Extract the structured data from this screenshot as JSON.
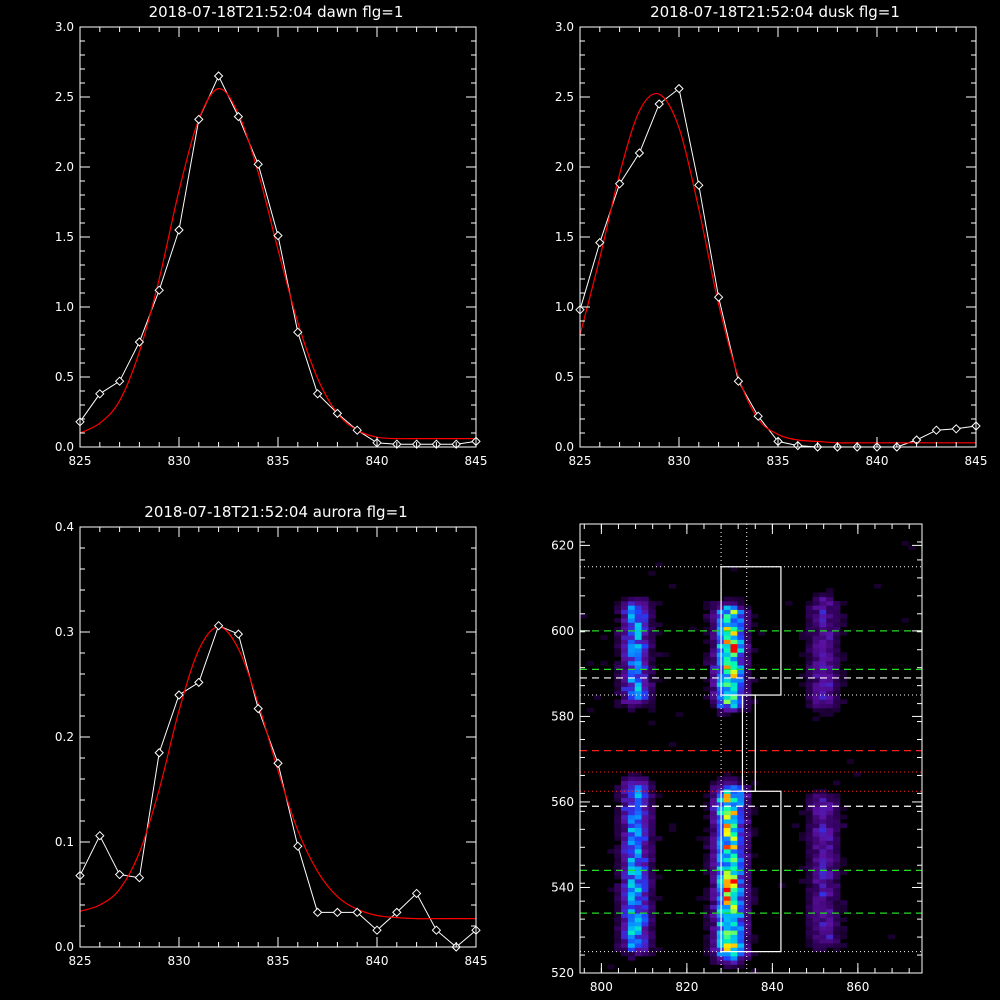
{
  "chart_data": [
    {
      "type": "line",
      "title": "2018-07-18T21:52:04 dawn flg=1",
      "xlim": [
        825,
        845
      ],
      "ylim": [
        0,
        3.0
      ],
      "xticks": [
        825,
        830,
        835,
        840,
        845
      ],
      "xtick_labels": [
        "825",
        "830",
        "835",
        "840",
        "845"
      ],
      "yticks": [
        0,
        0.5,
        1.0,
        1.5,
        2.0,
        2.5,
        3.0
      ],
      "ytick_labels": [
        "0.0",
        "0.5",
        "1.0",
        "1.5",
        "2.0",
        "2.5",
        "3.0"
      ],
      "grid": false,
      "series": [
        {
          "role": "observed",
          "color": "#ffffff",
          "marker": "diamond",
          "x": [
            825,
            826,
            827,
            828,
            829,
            830,
            831,
            832,
            833,
            834,
            835,
            836,
            837,
            838,
            839,
            840,
            841,
            842,
            843,
            844,
            845
          ],
          "y": [
            0.18,
            0.38,
            0.47,
            0.75,
            1.12,
            1.55,
            2.34,
            2.65,
            2.36,
            2.02,
            1.51,
            0.82,
            0.38,
            0.24,
            0.12,
            0.03,
            0.02,
            0.02,
            0.02,
            0.02,
            0.04
          ]
        },
        {
          "role": "fit",
          "color": "#ff0000",
          "marker": "none",
          "x": [
            825,
            826,
            827,
            828,
            829,
            830,
            831,
            832,
            833,
            834,
            835,
            836,
            837,
            838,
            839,
            840,
            841,
            842,
            843,
            844,
            845
          ],
          "y": [
            0.1,
            0.17,
            0.33,
            0.68,
            1.2,
            1.83,
            2.34,
            2.56,
            2.38,
            1.96,
            1.41,
            0.89,
            0.49,
            0.24,
            0.12,
            0.07,
            0.06,
            0.06,
            0.06,
            0.06,
            0.06
          ]
        }
      ]
    },
    {
      "type": "line",
      "title": "2018-07-18T21:52:04 dusk flg=1",
      "xlim": [
        825,
        845
      ],
      "ylim": [
        0,
        3.0
      ],
      "xticks": [
        825,
        830,
        835,
        840,
        845
      ],
      "xtick_labels": [
        "825",
        "830",
        "835",
        "840",
        "845"
      ],
      "yticks": [
        0,
        0.5,
        1.0,
        1.5,
        2.0,
        2.5,
        3.0
      ],
      "ytick_labels": [
        "0.0",
        "0.5",
        "1.0",
        "1.5",
        "2.0",
        "2.5",
        "3.0"
      ],
      "grid": false,
      "series": [
        {
          "role": "observed",
          "color": "#ffffff",
          "marker": "diamond",
          "x": [
            825,
            826,
            827,
            828,
            829,
            830,
            831,
            832,
            833,
            834,
            835,
            836,
            837,
            838,
            839,
            840,
            841,
            842,
            843,
            844,
            845
          ],
          "y": [
            0.98,
            1.46,
            1.88,
            2.1,
            2.45,
            2.56,
            1.87,
            1.07,
            0.47,
            0.22,
            0.04,
            0.01,
            0.0,
            0.0,
            0.0,
            0.0,
            0.0,
            0.05,
            0.12,
            0.13,
            0.15
          ]
        },
        {
          "role": "fit",
          "color": "#ff0000",
          "marker": "none",
          "x": [
            825,
            826,
            827,
            828,
            829,
            830,
            831,
            832,
            833,
            834,
            835,
            836,
            837,
            838,
            839,
            840,
            841,
            842,
            843,
            844,
            845
          ],
          "y": [
            0.8,
            1.35,
            1.95,
            2.4,
            2.52,
            2.28,
            1.7,
            1.02,
            0.5,
            0.2,
            0.09,
            0.05,
            0.04,
            0.03,
            0.03,
            0.03,
            0.03,
            0.03,
            0.03,
            0.03,
            0.03
          ]
        }
      ]
    },
    {
      "type": "line",
      "title": "2018-07-18T21:52:04 aurora flg=1",
      "xlim": [
        825,
        845
      ],
      "ylim": [
        0,
        0.4
      ],
      "xticks": [
        825,
        830,
        835,
        840,
        845
      ],
      "xtick_labels": [
        "825",
        "830",
        "835",
        "840",
        "845"
      ],
      "yticks": [
        0,
        0.1,
        0.2,
        0.3,
        0.4
      ],
      "ytick_labels": [
        "0.0",
        "0.1",
        "0.2",
        "0.3",
        "0.4"
      ],
      "grid": false,
      "series": [
        {
          "role": "observed",
          "color": "#ffffff",
          "marker": "diamond",
          "x": [
            825,
            826,
            827,
            828,
            829,
            830,
            831,
            832,
            833,
            834,
            835,
            836,
            837,
            838,
            839,
            840,
            841,
            842,
            843,
            844,
            845
          ],
          "y": [
            0.068,
            0.106,
            0.069,
            0.066,
            0.185,
            0.24,
            0.252,
            0.306,
            0.298,
            0.227,
            0.175,
            0.096,
            0.033,
            0.033,
            0.033,
            0.016,
            0.033,
            0.051,
            0.016,
            0.0,
            0.016
          ]
        },
        {
          "role": "fit",
          "color": "#ff0000",
          "marker": "none",
          "x": [
            825,
            826,
            827,
            828,
            829,
            830,
            831,
            832,
            833,
            834,
            835,
            836,
            837,
            838,
            839,
            840,
            841,
            842,
            843,
            844,
            845
          ],
          "y": [
            0.034,
            0.04,
            0.055,
            0.09,
            0.15,
            0.225,
            0.283,
            0.305,
            0.284,
            0.232,
            0.168,
            0.111,
            0.072,
            0.048,
            0.036,
            0.03,
            0.028,
            0.027,
            0.027,
            0.027,
            0.027
          ]
        }
      ]
    },
    {
      "type": "heatmap",
      "xlim": [
        795,
        875
      ],
      "ylim": [
        520,
        625
      ],
      "xticks": [
        800,
        820,
        840,
        860
      ],
      "xtick_labels": [
        "800",
        "820",
        "840",
        "860"
      ],
      "yticks": [
        520,
        540,
        560,
        580,
        600,
        620
      ],
      "ytick_labels": [
        "520",
        "540",
        "560",
        "580",
        "600",
        "620"
      ],
      "grid": false,
      "colormap": [
        "#000000",
        "#30005a",
        "#5a10a0",
        "#2040ff",
        "#00b4ff",
        "#00ffb0",
        "#ffff00",
        "#ff0000"
      ],
      "emission_bands": [
        {
          "x_center": 808,
          "x_halfwidth": 3.2,
          "y_ranges": [
            [
              585,
              605,
              0.55
            ],
            [
              527,
              563,
              0.6
            ]
          ]
        },
        {
          "x_center": 830,
          "x_halfwidth": 3.4,
          "y_ranges": [
            [
              584,
              604,
              0.85
            ],
            [
              525,
              562,
              0.85
            ]
          ]
        },
        {
          "x_center": 852,
          "x_halfwidth": 3.5,
          "y_ranges": [
            [
              584,
              606,
              0.3
            ],
            [
              528,
              560,
              0.3
            ]
          ]
        }
      ],
      "hot_spots": [
        [
          831,
          596
        ],
        [
          830,
          541
        ]
      ],
      "boxes": [
        {
          "x": [
            828,
            842
          ],
          "y": [
            585,
            615
          ]
        },
        {
          "x": [
            828,
            842
          ],
          "y": [
            525,
            562.5
          ]
        },
        {
          "x": [
            833,
            836
          ],
          "y": [
            562.5,
            585
          ]
        }
      ],
      "white_dotted_h": [
        615,
        585,
        525
      ],
      "white_dotted_v": [
        828,
        834
      ],
      "white_dashed_h": [
        589,
        559
      ],
      "green_dashed_h": [
        600,
        591,
        544,
        534
      ],
      "red_dashed_h": [
        572
      ],
      "red_dotted_h": [
        567,
        562.5
      ]
    }
  ]
}
